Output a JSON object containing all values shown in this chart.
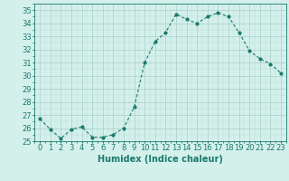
{
  "x": [
    0,
    1,
    2,
    3,
    4,
    5,
    6,
    7,
    8,
    9,
    10,
    11,
    12,
    13,
    14,
    15,
    16,
    17,
    18,
    19,
    20,
    21,
    22,
    23
  ],
  "y": [
    26.7,
    25.9,
    25.2,
    25.9,
    26.1,
    25.3,
    25.3,
    25.5,
    26.0,
    27.6,
    31.0,
    32.6,
    33.3,
    34.7,
    34.3,
    34.0,
    34.5,
    34.8,
    34.5,
    33.3,
    31.9,
    31.3,
    30.9,
    30.2
  ],
  "line_color": "#1a7a6e",
  "marker_color": "#1a7a6e",
  "bg_color": "#d4f0ea",
  "grid_color_major": "#a8cfc8",
  "grid_color_minor": "#bcdbd5",
  "xlabel": "Humidex (Indice chaleur)",
  "xlim": [
    -0.5,
    23.5
  ],
  "ylim": [
    25,
    35.5
  ],
  "yticks": [
    25,
    26,
    27,
    28,
    29,
    30,
    31,
    32,
    33,
    34,
    35
  ],
  "xtick_labels": [
    "0",
    "1",
    "2",
    "3",
    "4",
    "5",
    "6",
    "7",
    "8",
    "9",
    "10",
    "11",
    "12",
    "13",
    "14",
    "15",
    "16",
    "17",
    "18",
    "19",
    "20",
    "21",
    "22",
    "23"
  ],
  "label_fontsize": 7,
  "tick_fontsize": 6
}
